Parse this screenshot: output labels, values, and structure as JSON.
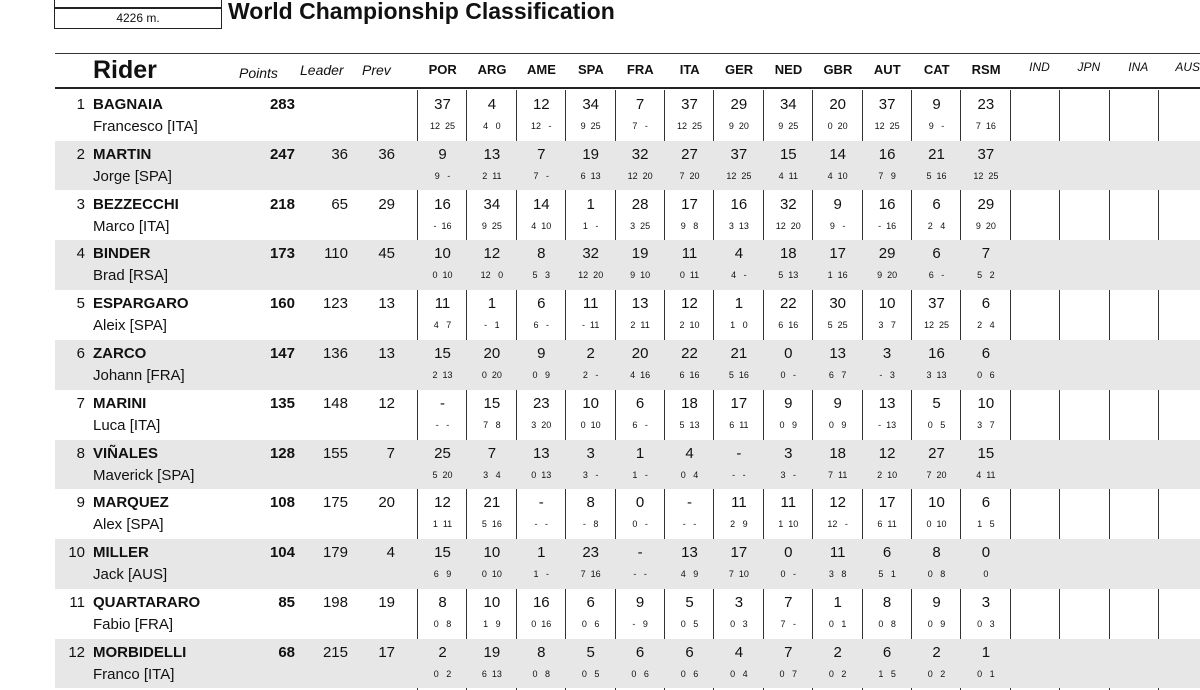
{
  "header": {
    "track_length": "4226 m.",
    "title": "World Championship Classification"
  },
  "columns": {
    "rider": "Rider",
    "points": "Points",
    "leader": "Leader",
    "prev": "Prev",
    "races": [
      "POR",
      "ARG",
      "AME",
      "SPA",
      "FRA",
      "ITA",
      "GER",
      "NED",
      "GBR",
      "AUT",
      "CAT",
      "RSM"
    ],
    "future": [
      "IND",
      "JPN",
      "INA",
      "AUS"
    ]
  },
  "riders": [
    {
      "pos": "1",
      "last": "BAGNAIA",
      "first": "Francesco [ITA]",
      "points": "283",
      "leader": "",
      "prev": "",
      "races": [
        [
          "37",
          "12  25"
        ],
        [
          "4",
          "4   0"
        ],
        [
          "12",
          "12   -"
        ],
        [
          "34",
          "9  25"
        ],
        [
          "7",
          "7   -"
        ],
        [
          "37",
          "12  25"
        ],
        [
          "29",
          "9  20"
        ],
        [
          "34",
          "9  25"
        ],
        [
          "20",
          "0  20"
        ],
        [
          "37",
          "12  25"
        ],
        [
          "9",
          "9   -"
        ],
        [
          "23",
          "7  16"
        ]
      ]
    },
    {
      "pos": "2",
      "last": "MARTIN",
      "first": "Jorge [SPA]",
      "points": "247",
      "leader": "36",
      "prev": "36",
      "races": [
        [
          "9",
          "9   -"
        ],
        [
          "13",
          "2  11"
        ],
        [
          "7",
          "7   -"
        ],
        [
          "19",
          "6  13"
        ],
        [
          "32",
          "12  20"
        ],
        [
          "27",
          "7  20"
        ],
        [
          "37",
          "12  25"
        ],
        [
          "15",
          "4  11"
        ],
        [
          "14",
          "4  10"
        ],
        [
          "16",
          "7   9"
        ],
        [
          "21",
          "5  16"
        ],
        [
          "37",
          "12  25"
        ]
      ]
    },
    {
      "pos": "3",
      "last": "BEZZECCHI",
      "first": "Marco [ITA]",
      "points": "218",
      "leader": "65",
      "prev": "29",
      "races": [
        [
          "16",
          "-  16"
        ],
        [
          "34",
          "9  25"
        ],
        [
          "14",
          "4  10"
        ],
        [
          "1",
          "1   -"
        ],
        [
          "28",
          "3  25"
        ],
        [
          "17",
          "9   8"
        ],
        [
          "16",
          "3  13"
        ],
        [
          "32",
          "12  20"
        ],
        [
          "9",
          "9   -"
        ],
        [
          "16",
          "-  16"
        ],
        [
          "6",
          "2   4"
        ],
        [
          "29",
          "9  20"
        ]
      ]
    },
    {
      "pos": "4",
      "last": "BINDER",
      "first": "Brad [RSA]",
      "points": "173",
      "leader": "110",
      "prev": "45",
      "races": [
        [
          "10",
          "0  10"
        ],
        [
          "12",
          "12   0"
        ],
        [
          "8",
          "5   3"
        ],
        [
          "32",
          "12  20"
        ],
        [
          "19",
          "9  10"
        ],
        [
          "11",
          "0  11"
        ],
        [
          "4",
          "4   -"
        ],
        [
          "18",
          "5  13"
        ],
        [
          "17",
          "1  16"
        ],
        [
          "29",
          "9  20"
        ],
        [
          "6",
          "6   -"
        ],
        [
          "7",
          "5   2"
        ]
      ]
    },
    {
      "pos": "5",
      "last": "ESPARGARO",
      "first": "Aleix [SPA]",
      "points": "160",
      "leader": "123",
      "prev": "13",
      "races": [
        [
          "11",
          "4   7"
        ],
        [
          "1",
          "-   1"
        ],
        [
          "6",
          "6   -"
        ],
        [
          "11",
          "-  11"
        ],
        [
          "13",
          "2  11"
        ],
        [
          "12",
          "2  10"
        ],
        [
          "1",
          "1   0"
        ],
        [
          "22",
          "6  16"
        ],
        [
          "30",
          "5  25"
        ],
        [
          "10",
          "3   7"
        ],
        [
          "37",
          "12  25"
        ],
        [
          "6",
          "2   4"
        ]
      ]
    },
    {
      "pos": "6",
      "last": "ZARCO",
      "first": "Johann [FRA]",
      "points": "147",
      "leader": "136",
      "prev": "13",
      "races": [
        [
          "15",
          "2  13"
        ],
        [
          "20",
          "0  20"
        ],
        [
          "9",
          "0   9"
        ],
        [
          "2",
          "2   -"
        ],
        [
          "20",
          "4  16"
        ],
        [
          "22",
          "6  16"
        ],
        [
          "21",
          "5  16"
        ],
        [
          "0",
          "0   -"
        ],
        [
          "13",
          "6   7"
        ],
        [
          "3",
          "-   3"
        ],
        [
          "16",
          "3  13"
        ],
        [
          "6",
          "0   6"
        ]
      ]
    },
    {
      "pos": "7",
      "last": "MARINI",
      "first": "Luca [ITA]",
      "points": "135",
      "leader": "148",
      "prev": "12",
      "races": [
        [
          "-",
          "-   -"
        ],
        [
          "15",
          "7   8"
        ],
        [
          "23",
          "3  20"
        ],
        [
          "10",
          "0  10"
        ],
        [
          "6",
          "6   -"
        ],
        [
          "18",
          "5  13"
        ],
        [
          "17",
          "6  11"
        ],
        [
          "9",
          "0   9"
        ],
        [
          "9",
          "0   9"
        ],
        [
          "13",
          "-  13"
        ],
        [
          "5",
          "0   5"
        ],
        [
          "10",
          "3   7"
        ]
      ]
    },
    {
      "pos": "8",
      "last": "VIÑALES",
      "first": "Maverick [SPA]",
      "points": "128",
      "leader": "155",
      "prev": "7",
      "races": [
        [
          "25",
          "5  20"
        ],
        [
          "7",
          "3   4"
        ],
        [
          "13",
          "0  13"
        ],
        [
          "3",
          "3   -"
        ],
        [
          "1",
          "1   -"
        ],
        [
          "4",
          "0   4"
        ],
        [
          "-",
          "-   -"
        ],
        [
          "3",
          "3   -"
        ],
        [
          "18",
          "7  11"
        ],
        [
          "12",
          "2  10"
        ],
        [
          "27",
          "7  20"
        ],
        [
          "15",
          "4  11"
        ]
      ]
    },
    {
      "pos": "9",
      "last": "MARQUEZ",
      "first": "Alex [SPA]",
      "points": "108",
      "leader": "175",
      "prev": "20",
      "races": [
        [
          "12",
          "1  11"
        ],
        [
          "21",
          "5  16"
        ],
        [
          "-",
          "-   -"
        ],
        [
          "8",
          "-   8"
        ],
        [
          "0",
          "0   -"
        ],
        [
          "-",
          "-   -"
        ],
        [
          "11",
          "2   9"
        ],
        [
          "11",
          "1  10"
        ],
        [
          "12",
          "12   -"
        ],
        [
          "17",
          "6  11"
        ],
        [
          "10",
          "0  10"
        ],
        [
          "6",
          "1   5"
        ]
      ]
    },
    {
      "pos": "10",
      "last": "MILLER",
      "first": "Jack [AUS]",
      "points": "104",
      "leader": "179",
      "prev": "4",
      "races": [
        [
          "15",
          "6   9"
        ],
        [
          "10",
          "0  10"
        ],
        [
          "1",
          "1   -"
        ],
        [
          "23",
          "7  16"
        ],
        [
          "-",
          "-   -"
        ],
        [
          "13",
          "4   9"
        ],
        [
          "17",
          "7  10"
        ],
        [
          "0",
          "0   -"
        ],
        [
          "11",
          "3   8"
        ],
        [
          "6",
          "5   1"
        ],
        [
          "8",
          "0   8"
        ],
        [
          "0",
          "0"
        ]
      ]
    },
    {
      "pos": "11",
      "last": "QUARTARARO",
      "first": "Fabio [FRA]",
      "points": "85",
      "leader": "198",
      "prev": "19",
      "races": [
        [
          "8",
          "0   8"
        ],
        [
          "10",
          "1   9"
        ],
        [
          "16",
          "0  16"
        ],
        [
          "6",
          "0   6"
        ],
        [
          "9",
          "-   9"
        ],
        [
          "5",
          "0   5"
        ],
        [
          "3",
          "0   3"
        ],
        [
          "7",
          "7   -"
        ],
        [
          "1",
          "0   1"
        ],
        [
          "8",
          "0   8"
        ],
        [
          "9",
          "0   9"
        ],
        [
          "3",
          "0   3"
        ]
      ]
    },
    {
      "pos": "12",
      "last": "MORBIDELLI",
      "first": "Franco [ITA]",
      "points": "68",
      "leader": "215",
      "prev": "17",
      "races": [
        [
          "2",
          "0   2"
        ],
        [
          "19",
          "6  13"
        ],
        [
          "8",
          "0   8"
        ],
        [
          "5",
          "0   5"
        ],
        [
          "6",
          "0   6"
        ],
        [
          "6",
          "0   6"
        ],
        [
          "4",
          "0   4"
        ],
        [
          "7",
          "0   7"
        ],
        [
          "2",
          "0   2"
        ],
        [
          "6",
          "1   5"
        ],
        [
          "2",
          "0   2"
        ],
        [
          "1",
          "0   1"
        ]
      ]
    }
  ]
}
